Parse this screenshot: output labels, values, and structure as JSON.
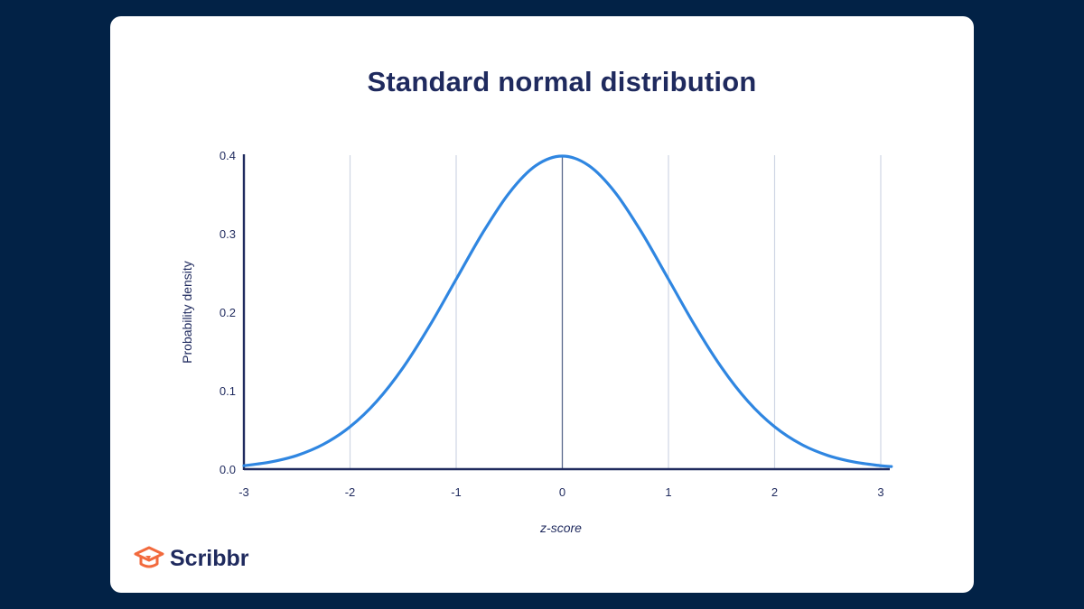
{
  "brand": {
    "name": "Scribbr",
    "accent": "#f26a3d"
  },
  "colors": {
    "background": "#022246",
    "curve": "#2f86e1",
    "axis": "#1f2a5e",
    "grid": "#cfd6e4"
  },
  "chart_data": {
    "type": "line",
    "title": "Standard normal distribution",
    "xlabel": "z-score",
    "ylabel": "Probability density",
    "xlim": [
      -3,
      3.1
    ],
    "ylim": [
      0,
      0.4
    ],
    "x_ticks": [
      "-3",
      "-2",
      "-1",
      "0",
      "1",
      "2",
      "3"
    ],
    "y_ticks": [
      "0.0",
      "0.1",
      "0.2",
      "0.3",
      "0.4"
    ],
    "grid": "vertical",
    "series": [
      {
        "x": [
          -3,
          -2.75,
          -2.5,
          -2.25,
          -2,
          -1.75,
          -1.5,
          -1.25,
          -1,
          -0.75,
          -0.5,
          -0.25,
          0,
          0.25,
          0.5,
          0.75,
          1,
          1.25,
          1.5,
          1.75,
          2,
          2.25,
          2.5,
          2.75,
          3,
          3.1
        ],
        "y": [
          0.0044,
          0.0091,
          0.0175,
          0.0317,
          0.054,
          0.0863,
          0.1295,
          0.1826,
          0.242,
          0.3011,
          0.3521,
          0.3867,
          0.3989,
          0.3867,
          0.3521,
          0.3011,
          0.242,
          0.1826,
          0.1295,
          0.0863,
          0.054,
          0.0317,
          0.0175,
          0.0091,
          0.0044,
          0.0033
        ]
      }
    ]
  }
}
